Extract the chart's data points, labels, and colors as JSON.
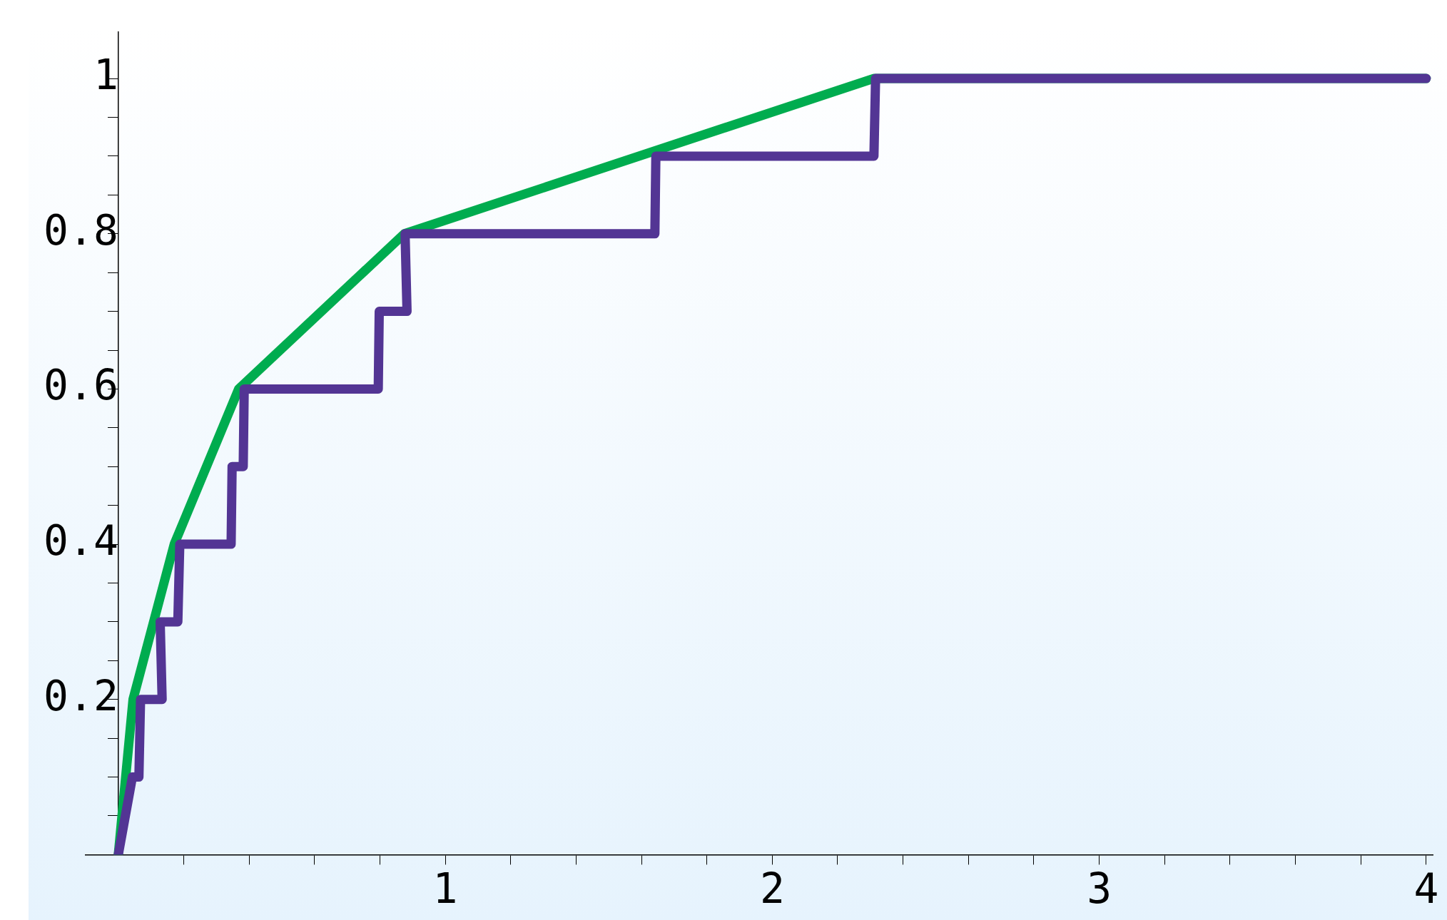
{
  "chart_data": {
    "type": "line",
    "marker": "none",
    "line_style": "solid",
    "grid": false,
    "legend": false,
    "xlim": [
      -0.1,
      4.02
    ],
    "ylim": [
      0,
      1.06
    ],
    "xticks": [
      {
        "value": 0.2,
        "label": null
      },
      {
        "value": 0.4,
        "label": null
      },
      {
        "value": 0.6,
        "label": null
      },
      {
        "value": 0.8,
        "label": null
      },
      1,
      {
        "value": 1.2,
        "label": null
      },
      {
        "value": 1.4,
        "label": null
      },
      {
        "value": 1.6,
        "label": null
      },
      {
        "value": 1.8,
        "label": null
      },
      2,
      {
        "value": 2.2,
        "label": null
      },
      {
        "value": 2.4,
        "label": null
      },
      {
        "value": 2.6,
        "label": null
      },
      {
        "value": 2.8,
        "label": null
      },
      3,
      {
        "value": 3.2,
        "label": null
      },
      {
        "value": 3.4,
        "label": null
      },
      {
        "value": 3.6,
        "label": null
      },
      {
        "value": 3.8,
        "label": null
      },
      4
    ],
    "yticks": [
      {
        "value": 0.05,
        "label": null
      },
      {
        "value": 0.1,
        "label": null
      },
      {
        "value": 0.15,
        "label": null
      },
      0.2,
      {
        "value": 0.25,
        "label": null
      },
      {
        "value": 0.3,
        "label": null
      },
      {
        "value": 0.35,
        "label": null
      },
      0.4,
      {
        "value": 0.45,
        "label": null
      },
      {
        "value": 0.5,
        "label": null
      },
      {
        "value": 0.55,
        "label": null
      },
      0.6,
      {
        "value": 0.65,
        "label": null
      },
      {
        "value": 0.7,
        "label": null
      },
      {
        "value": 0.75,
        "label": null
      },
      0.8,
      {
        "value": 0.85,
        "label": null
      },
      {
        "value": 0.9,
        "label": null
      },
      {
        "value": 0.95,
        "label": null
      },
      1
    ],
    "series": [
      {
        "color": "#00ac4f",
        "x": [
          0,
          0.045,
          0.171,
          0.368,
          0.875,
          2.31,
          4
        ],
        "values": [
          0,
          0.2,
          0.4,
          0.6,
          0.8,
          1,
          1
        ]
      },
      {
        "color": "#533594",
        "x": [
          0,
          0.043,
          0.063,
          0.068,
          0.134,
          0.128,
          0.182,
          0.188,
          0.345,
          0.348,
          0.382,
          0.385,
          0.795,
          0.798,
          0.883,
          0.877,
          1.641,
          1.644,
          2.311,
          2.316,
          4
        ],
        "values": [
          0,
          0.1,
          0.1,
          0.2,
          0.2,
          0.3,
          0.3,
          0.4,
          0.4,
          0.5,
          0.5,
          0.6,
          0.6,
          0.7,
          0.7,
          0.8,
          0.8,
          0.9,
          0.9,
          1,
          1
        ]
      }
    ]
  }
}
